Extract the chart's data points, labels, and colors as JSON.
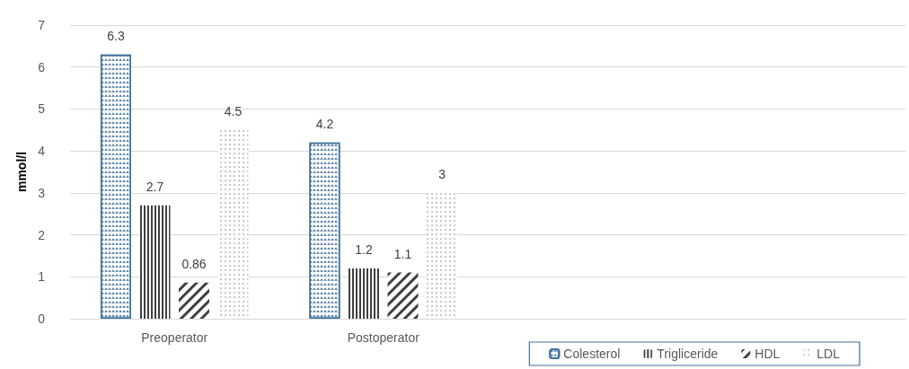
{
  "chart_data": {
    "type": "bar",
    "ylabel": "mmol/l",
    "categories": [
      "Preoperator",
      "Postoperator",
      null,
      null
    ],
    "series": [
      {
        "name": "Colesterol",
        "color": "#41719c",
        "values": [
          6.3,
          4.2,
          null,
          null
        ]
      },
      {
        "name": "Trigliceride",
        "color": "#404040",
        "values": [
          2.7,
          1.2,
          null,
          null
        ]
      },
      {
        "name": "HDL",
        "color": "#404040",
        "values": [
          0.86,
          1.1,
          null,
          null
        ]
      },
      {
        "name": "LDL",
        "color": "#595959",
        "values": [
          4.5,
          3,
          null,
          null
        ]
      }
    ],
    "ylim": [
      0,
      7
    ],
    "yticks": [
      0,
      1,
      2,
      3,
      4,
      5,
      6,
      7
    ],
    "grid": "y",
    "legend": "bottom right",
    "data_labels": true
  }
}
